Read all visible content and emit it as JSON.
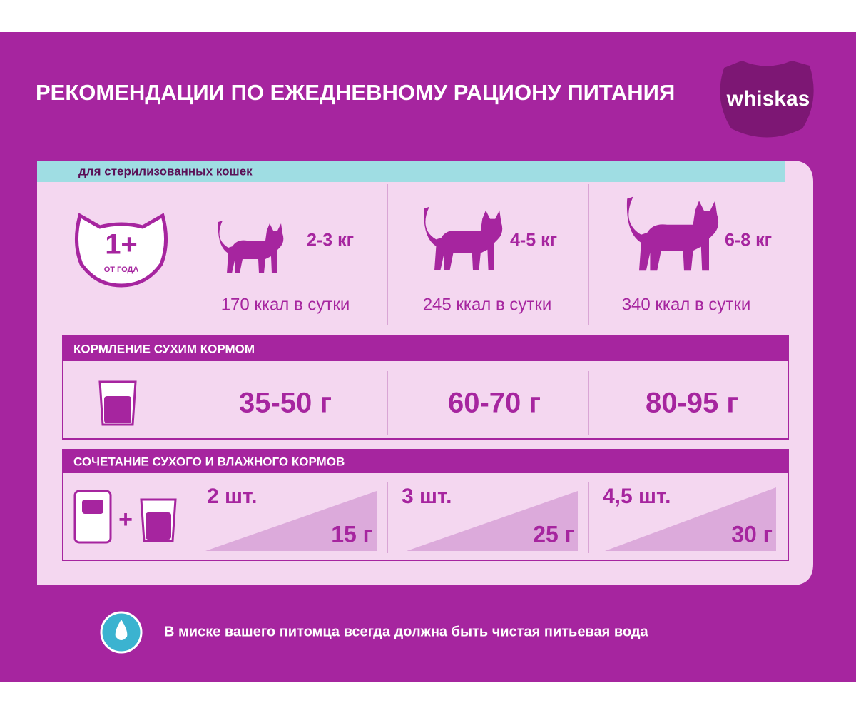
{
  "header": {
    "title": "РЕКОМЕНДАЦИИ ПО ЕЖЕДНЕВНОМУ РАЦИОНУ ПИТАНИЯ",
    "logo": "whiskas"
  },
  "panel": {
    "subtitle": "для стерилизованных кошек"
  },
  "badge": {
    "value": "1+",
    "label": "ОТ ГОДА"
  },
  "columns": [
    {
      "weight": "2-3 кг",
      "calories": "170 ккал в сутки",
      "dry": "35-50 г",
      "pouches": "2 шт.",
      "grams": "15 г"
    },
    {
      "weight": "4-5 кг",
      "calories": "245 ккал в сутки",
      "dry": "60-70 г",
      "pouches": "3 шт.",
      "grams": "25 г"
    },
    {
      "weight": "6-8 кг",
      "calories": "340 ккал в сутки",
      "dry": "80-95 г",
      "pouches": "4,5 шт.",
      "grams": "30 г"
    }
  ],
  "sections": {
    "dry": "КОРМЛЕНИЕ СУХИМ КОРМОМ",
    "mixed": "СОЧЕТАНИЕ СУХОГО И ВЛАЖНОГО КОРМОВ"
  },
  "footer": {
    "note": "В миске вашего питомца всегда должна быть чистая питьевая вода"
  }
}
